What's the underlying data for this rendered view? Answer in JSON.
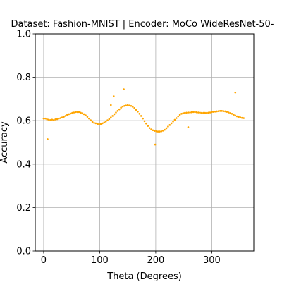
{
  "chart_data": {
    "type": "scatter",
    "title": "Dataset: Fashion-MNIST | Encoder: MoCo WideResNet-50-",
    "xlabel": "Theta (Degrees)",
    "ylabel": "Accuracy",
    "xlim": [
      -15,
      375
    ],
    "ylim": [
      0,
      1.0
    ],
    "xticks": [
      0,
      100,
      200,
      300
    ],
    "yticks": [
      0.0,
      0.2,
      0.4,
      0.6,
      0.8,
      1.0
    ],
    "xtick_labels": [
      "0",
      "100",
      "200",
      "300"
    ],
    "ytick_labels": [
      "0.0",
      "0.2",
      "0.4",
      "0.6",
      "0.8",
      "1.0"
    ],
    "grid": true,
    "color": "#FFA500",
    "series": [
      {
        "x": [
          0,
          3,
          6,
          9,
          12,
          15,
          18,
          21,
          24,
          27,
          30,
          33,
          36,
          39,
          42,
          45,
          48,
          51,
          54,
          57,
          60,
          63,
          66,
          69,
          72,
          75,
          78,
          81,
          84,
          87,
          90,
          93,
          96,
          99,
          102,
          105,
          108,
          111,
          114,
          117,
          120,
          123,
          126,
          129,
          132,
          135,
          138,
          141,
          144,
          147,
          150,
          153,
          156,
          159,
          162,
          165,
          168,
          171,
          174,
          177,
          180,
          183,
          186,
          189,
          192,
          195,
          198,
          201,
          204,
          207,
          210,
          213,
          216,
          219,
          222,
          225,
          228,
          231,
          234,
          237,
          240,
          243,
          246,
          249,
          252,
          255,
          258,
          261,
          264,
          267,
          270,
          273,
          276,
          279,
          282,
          285,
          288,
          291,
          294,
          297,
          300,
          303,
          306,
          309,
          312,
          315,
          318,
          321,
          324,
          327,
          330,
          333,
          336,
          339,
          342,
          345,
          348,
          351,
          354,
          357,
          7,
          120,
          125,
          143,
          199,
          258,
          342
        ],
        "y": [
          0.61,
          0.61,
          0.606,
          0.605,
          0.603,
          0.605,
          0.603,
          0.606,
          0.607,
          0.61,
          0.612,
          0.615,
          0.618,
          0.622,
          0.627,
          0.63,
          0.633,
          0.636,
          0.638,
          0.64,
          0.64,
          0.64,
          0.637,
          0.635,
          0.63,
          0.625,
          0.618,
          0.61,
          0.602,
          0.595,
          0.59,
          0.588,
          0.585,
          0.584,
          0.585,
          0.588,
          0.592,
          0.596,
          0.602,
          0.608,
          0.615,
          0.622,
          0.63,
          0.638,
          0.645,
          0.652,
          0.66,
          0.665,
          0.668,
          0.67,
          0.672,
          0.67,
          0.668,
          0.664,
          0.658,
          0.65,
          0.642,
          0.632,
          0.622,
          0.61,
          0.598,
          0.587,
          0.576,
          0.566,
          0.56,
          0.556,
          0.553,
          0.551,
          0.55,
          0.55,
          0.551,
          0.554,
          0.558,
          0.565,
          0.573,
          0.58,
          0.588,
          0.596,
          0.604,
          0.612,
          0.62,
          0.627,
          0.632,
          0.635,
          0.636,
          0.637,
          0.638,
          0.638,
          0.639,
          0.64,
          0.64,
          0.639,
          0.638,
          0.637,
          0.636,
          0.636,
          0.636,
          0.636,
          0.637,
          0.638,
          0.64,
          0.641,
          0.642,
          0.643,
          0.644,
          0.645,
          0.645,
          0.644,
          0.643,
          0.641,
          0.638,
          0.635,
          0.632,
          0.628,
          0.624,
          0.62,
          0.618,
          0.615,
          0.613,
          0.612,
          0.515,
          0.672,
          0.713,
          0.745,
          0.49,
          0.57,
          0.73
        ]
      }
    ]
  }
}
